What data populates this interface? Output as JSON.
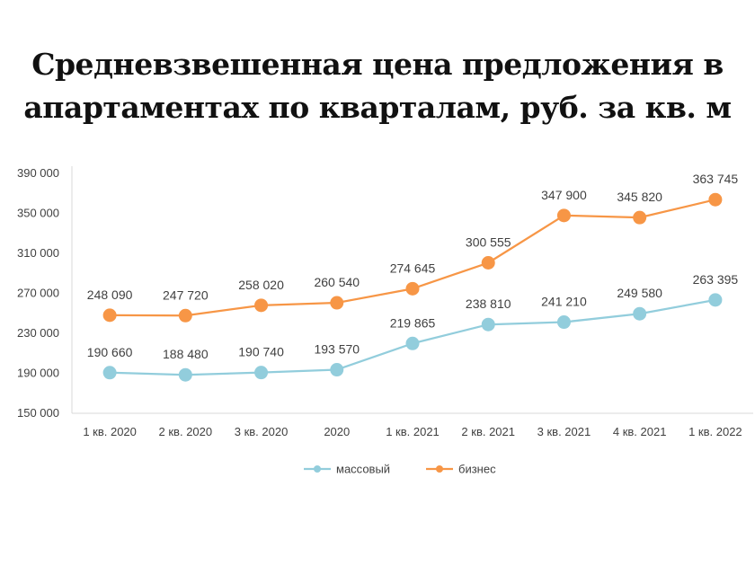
{
  "title": {
    "line1": "Средневзвешенная цена предложения в",
    "line2": "апартаментах по кварталам, руб. за кв. м"
  },
  "chart_data": {
    "type": "line",
    "categories": [
      "1 кв. 2020",
      "2 кв. 2020",
      "3 кв. 2020",
      "2020",
      "1 кв. 2021",
      "2 кв. 2021",
      "3 кв. 2021",
      "4 кв. 2021",
      "1 кв. 2022"
    ],
    "series": [
      {
        "name": "массовый",
        "color": "#92cddc",
        "values": [
          190660,
          188480,
          190740,
          193570,
          219865,
          238810,
          241210,
          249580,
          263395
        ],
        "labels": [
          "190 660",
          "188 480",
          "190 740",
          "193 570",
          "219 865",
          "238 810",
          "241 210",
          "249 580",
          "263 395"
        ]
      },
      {
        "name": "бизнес",
        "color": "#f79646",
        "values": [
          248090,
          247720,
          258020,
          260540,
          274645,
          300555,
          347900,
          345820,
          363745
        ],
        "labels": [
          "248 090",
          "247 720",
          "258 020",
          "260 540",
          "274 645",
          "300 555",
          "347 900",
          "345 820",
          "363 745"
        ]
      }
    ],
    "ylim": [
      150000,
      390000
    ],
    "yticks": [
      150000,
      190000,
      230000,
      270000,
      310000,
      350000,
      390000
    ],
    "ytick_labels": [
      "150 000",
      "190 000",
      "230 000",
      "270 000",
      "310 000",
      "350 000",
      "390 000"
    ],
    "grid": false,
    "legend": "bottom"
  }
}
